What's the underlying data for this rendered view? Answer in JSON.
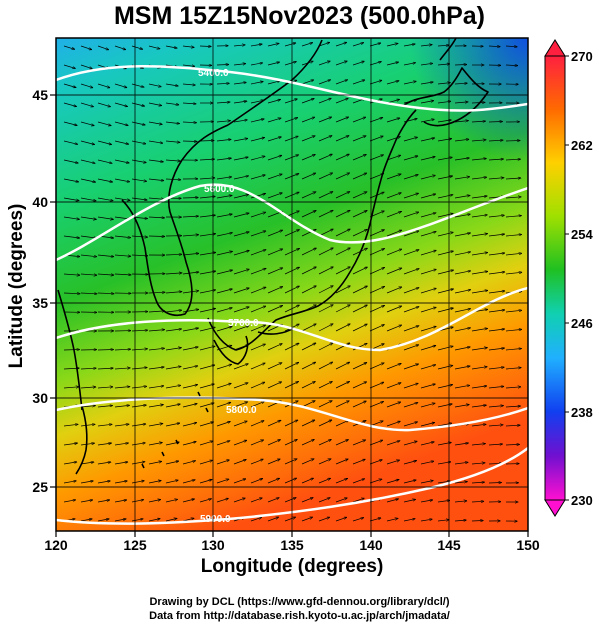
{
  "title": "MSM 15Z15Nov2023 (500.0hPa)",
  "x_axis": {
    "label": "Longitude (degrees)",
    "range": [
      120,
      150
    ],
    "ticks": [
      "120",
      "125",
      "130",
      "135",
      "140",
      "145",
      "150"
    ]
  },
  "y_axis": {
    "label": "Latitude  (degrees)",
    "range": [
      22.5,
      47.5
    ],
    "ticks": [
      "25",
      "30",
      "35",
      "40",
      "45"
    ]
  },
  "colorbar": {
    "min": 230,
    "max": 270,
    "tick_labels": [
      "270",
      "262",
      "254",
      "246",
      "238",
      "230"
    ],
    "colors": [
      "#ff2040",
      "#ff6a00",
      "#ffd000",
      "#a0e000",
      "#20c020",
      "#10d0b0",
      "#20b0ff",
      "#1040f0",
      "#7010d0",
      "#ff10d0"
    ]
  },
  "contours": {
    "labels": [
      "5400.0",
      "5600.0",
      "5700.0",
      "5800.0",
      "5900.0"
    ]
  },
  "credits": {
    "line1": "Drawing by DCL (https://www.gfd-dennou.org/library/dcl/)",
    "line2": "Data from http://database.rish.kyoto-u.ac.jp/arch/jmadata/"
  }
}
